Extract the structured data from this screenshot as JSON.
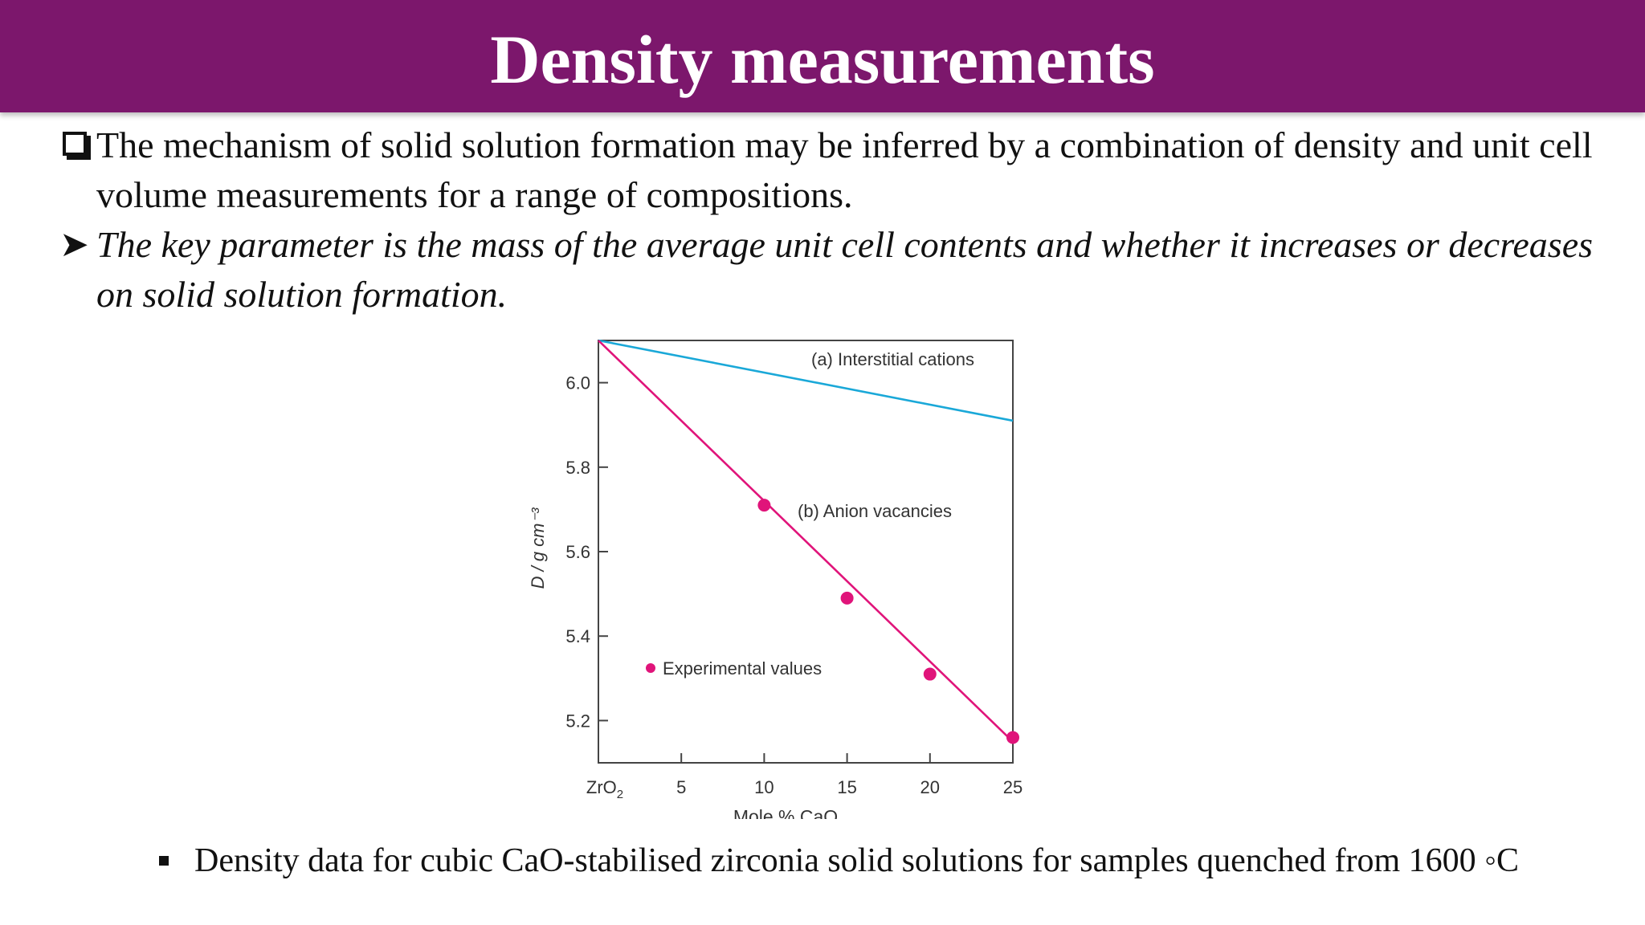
{
  "header": {
    "title": "Density measurements"
  },
  "bullets": [
    {
      "icon": "checkbox-icon",
      "text": "The mechanism of solid solution formation may be inferred by a combination of density and unit cell volume measurements for a range of compositions."
    },
    {
      "icon": "arrow-icon",
      "text": "The key parameter is the mass of the average unit cell contents and whether it increases or decreases on solid solution formation."
    }
  ],
  "caption": "Density data for cubic CaO-stabilised zirconia solid solutions for samples quenched from 1600 ◦C",
  "chart_data": {
    "type": "line",
    "xlabel": "Mole % CaO",
    "ylabel": "D / g cm⁻³",
    "xlim": [
      0,
      25
    ],
    "ylim": [
      5.1,
      6.1
    ],
    "x_ticks": [
      {
        "value": 0,
        "label": "ZrO₂"
      },
      {
        "value": 5,
        "label": "5"
      },
      {
        "value": 10,
        "label": "10"
      },
      {
        "value": 15,
        "label": "15"
      },
      {
        "value": 20,
        "label": "20"
      },
      {
        "value": 25,
        "label": "25"
      }
    ],
    "y_ticks": [
      {
        "value": 5.2,
        "label": "5.2"
      },
      {
        "value": 5.4,
        "label": "5.4"
      },
      {
        "value": 5.6,
        "label": "5.6"
      },
      {
        "value": 5.8,
        "label": "5.8"
      },
      {
        "value": 6.0,
        "label": "6.0"
      }
    ],
    "grid": false,
    "series": [
      {
        "name": "(a) Interstitial cations",
        "color": "#1aa8d8",
        "x": [
          0,
          25
        ],
        "y": [
          6.1,
          5.91
        ]
      },
      {
        "name": "(b) Anion vacancies",
        "color": "#e0147a",
        "x": [
          0,
          25
        ],
        "y": [
          6.1,
          5.15
        ]
      }
    ],
    "points": {
      "name": "Experimental values",
      "color": "#e0147a",
      "x": [
        10,
        15,
        20,
        25
      ],
      "y": [
        5.71,
        5.49,
        5.31,
        5.16
      ]
    },
    "axis_color": "#444444",
    "text_color": "#333333"
  }
}
